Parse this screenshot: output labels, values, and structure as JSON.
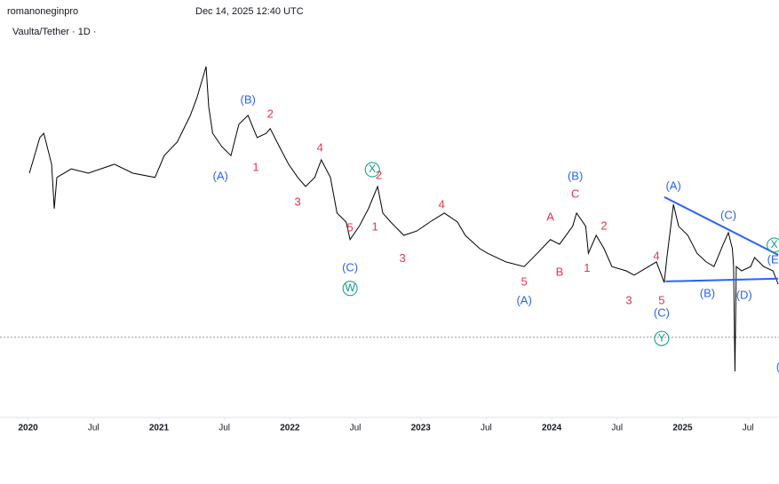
{
  "header": {
    "author": "romanoneginpro",
    "timestamp": "Dec 14, 2025 12:40 UTC"
  },
  "chart_data": {
    "type": "line",
    "title": "Vaulta/Tether · 1D ·",
    "color": "#000000",
    "xlim": [
      2019.84,
      2025.75
    ],
    "ylim": [
      0,
      100
    ],
    "xticks": [
      2020,
      {
        "value": 2020.5,
        "label": "Jul"
      },
      2021,
      {
        "value": 2021.5,
        "label": "Jul"
      },
      2022,
      {
        "value": 2022.5,
        "label": "Jul"
      },
      2023,
      {
        "value": 2023.5,
        "label": "Jul"
      },
      2024,
      {
        "value": 2024.5,
        "label": "Jul"
      },
      2025,
      {
        "value": 2025.5,
        "label": "Jul"
      }
    ],
    "x": [
      2020.01,
      2020.09,
      2020.12,
      2020.18,
      2020.2,
      2020.22,
      2020.33,
      2020.46,
      2020.66,
      2020.8,
      2020.97,
      2021.04,
      2021.14,
      2021.24,
      2021.29,
      2021.36,
      2021.38,
      2021.41,
      2021.48,
      2021.55,
      2021.61,
      2021.68,
      2021.75,
      2021.82,
      2021.85,
      2021.92,
      2021.99,
      2022.06,
      2022.12,
      2022.19,
      2022.24,
      2022.31,
      2022.36,
      2022.43,
      2022.46,
      2022.53,
      2022.6,
      2022.67,
      2022.71,
      2022.77,
      2022.87,
      2022.97,
      2023.07,
      2023.18,
      2023.28,
      2023.34,
      2023.45,
      2023.51,
      2023.65,
      2023.79,
      2023.89,
      2023.99,
      2024.06,
      2024.16,
      2024.19,
      2024.26,
      2024.28,
      2024.34,
      2024.4,
      2024.46,
      2024.57,
      2024.63,
      2024.74,
      2024.8,
      2024.86,
      2024.88,
      2024.93,
      2024.97,
      2025.04,
      2025.11,
      2025.18,
      2025.24,
      2025.31,
      2025.35,
      2025.38,
      2025.39,
      2025.4,
      2025.41,
      2025.45,
      2025.52,
      2025.55,
      2025.62,
      2025.69,
      2025.73
    ],
    "values": [
      62.5,
      71.6,
      72.7,
      64.8,
      53.4,
      61.4,
      63.6,
      62.5,
      64.8,
      62.5,
      61.4,
      67.0,
      70.5,
      77.3,
      81.8,
      89.8,
      79.5,
      72.7,
      69.3,
      67.0,
      75.0,
      77.3,
      71.6,
      72.7,
      73.9,
      69.3,
      64.8,
      61.4,
      59.1,
      61.4,
      65.9,
      61.4,
      52.3,
      50.0,
      45.5,
      48.9,
      53.4,
      59.1,
      52.3,
      50.0,
      46.6,
      47.7,
      50.0,
      52.3,
      50.0,
      46.6,
      43.2,
      42.0,
      39.8,
      38.6,
      42.0,
      45.5,
      44.3,
      48.9,
      52.3,
      48.9,
      42.0,
      46.6,
      43.2,
      38.6,
      37.5,
      36.4,
      38.6,
      39.8,
      34.5,
      40.9,
      54.5,
      48.9,
      46.6,
      42.0,
      39.8,
      38.6,
      44.3,
      47.3,
      43.2,
      38.6,
      11.8,
      38.6,
      37.5,
      38.6,
      40.9,
      38.6,
      37.5,
      34.1
    ],
    "reference_line": 20.5,
    "trendlines": [
      {
        "color": "#2962ff",
        "x": [
          2024.86,
          2025.73
        ],
        "values": [
          56.4,
          41.6
        ]
      },
      {
        "color": "#2962ff",
        "x": [
          2024.87,
          2025.73
        ],
        "values": [
          34.8,
          35.5
        ]
      }
    ],
    "annotations": [
      {
        "text": "(A)",
        "x": 2021.47,
        "y": 61.6,
        "color": "#2962ff"
      },
      {
        "text": "(B)",
        "x": 2021.68,
        "y": 81.1,
        "color": "#2962ff"
      },
      {
        "text": "2",
        "x": 2021.85,
        "y": 77.5,
        "color": "#e8344a"
      },
      {
        "text": "1",
        "x": 2021.74,
        "y": 63.9,
        "color": "#e8344a"
      },
      {
        "text": "4",
        "x": 2022.23,
        "y": 68.9,
        "color": "#e8344a"
      },
      {
        "text": "3",
        "x": 2022.06,
        "y": 55.0,
        "color": "#e8344a"
      },
      {
        "text": "X",
        "x": 2022.63,
        "y": 63.4,
        "color": "#089981",
        "circled": true
      },
      {
        "text": "2",
        "x": 2022.68,
        "y": 61.8,
        "color": "#e8344a"
      },
      {
        "text": "1",
        "x": 2022.65,
        "y": 48.6,
        "color": "#e8344a"
      },
      {
        "text": "5",
        "x": 2022.46,
        "y": 48.4,
        "color": "#e8344a"
      },
      {
        "text": "(C)",
        "x": 2022.46,
        "y": 38.2,
        "color": "#2962ff"
      },
      {
        "text": "W",
        "x": 2022.46,
        "y": 33.0,
        "color": "#089981",
        "circled": true
      },
      {
        "text": "4",
        "x": 2023.16,
        "y": 54.3,
        "color": "#e8344a"
      },
      {
        "text": "3",
        "x": 2022.86,
        "y": 40.5,
        "color": "#e8344a"
      },
      {
        "text": "(B)",
        "x": 2024.18,
        "y": 61.6,
        "color": "#2962ff"
      },
      {
        "text": "C",
        "x": 2024.18,
        "y": 57.0,
        "color": "#e8344a"
      },
      {
        "text": "A",
        "x": 2023.99,
        "y": 51.1,
        "color": "#e8344a"
      },
      {
        "text": "2",
        "x": 2024.4,
        "y": 48.9,
        "color": "#e8344a"
      },
      {
        "text": "B",
        "x": 2024.06,
        "y": 37.0,
        "color": "#e8344a"
      },
      {
        "text": "1",
        "x": 2024.27,
        "y": 38.0,
        "color": "#e8344a"
      },
      {
        "text": "5",
        "x": 2023.79,
        "y": 34.5,
        "color": "#e8344a"
      },
      {
        "text": "(A)",
        "x": 2023.79,
        "y": 29.8,
        "color": "#2962ff"
      },
      {
        "text": "4",
        "x": 2024.8,
        "y": 41.1,
        "color": "#e8344a"
      },
      {
        "text": "3",
        "x": 2024.59,
        "y": 29.8,
        "color": "#e8344a"
      },
      {
        "text": "5",
        "x": 2024.84,
        "y": 29.8,
        "color": "#e8344a"
      },
      {
        "text": "(C)",
        "x": 2024.84,
        "y": 26.6,
        "color": "#2962ff"
      },
      {
        "text": "Y",
        "x": 2024.84,
        "y": 20.2,
        "color": "#089981",
        "circled": true
      },
      {
        "text": "(A)",
        "x": 2024.93,
        "y": 59.1,
        "color": "#2962ff"
      },
      {
        "text": "(C)",
        "x": 2025.35,
        "y": 51.6,
        "color": "#2962ff"
      },
      {
        "text": "(B)",
        "x": 2025.19,
        "y": 31.6,
        "color": "#2962ff"
      },
      {
        "text": "(D)",
        "x": 2025.47,
        "y": 31.1,
        "color": "#2962ff"
      },
      {
        "text": "X",
        "x": 2025.7,
        "y": 44.1,
        "color": "#089981",
        "circled": true
      },
      {
        "text": "(E",
        "x": 2025.69,
        "y": 40.2,
        "color": "#2962ff"
      },
      {
        "text": "(",
        "x": 2025.73,
        "y": 12.7,
        "color": "#2962ff"
      }
    ]
  }
}
